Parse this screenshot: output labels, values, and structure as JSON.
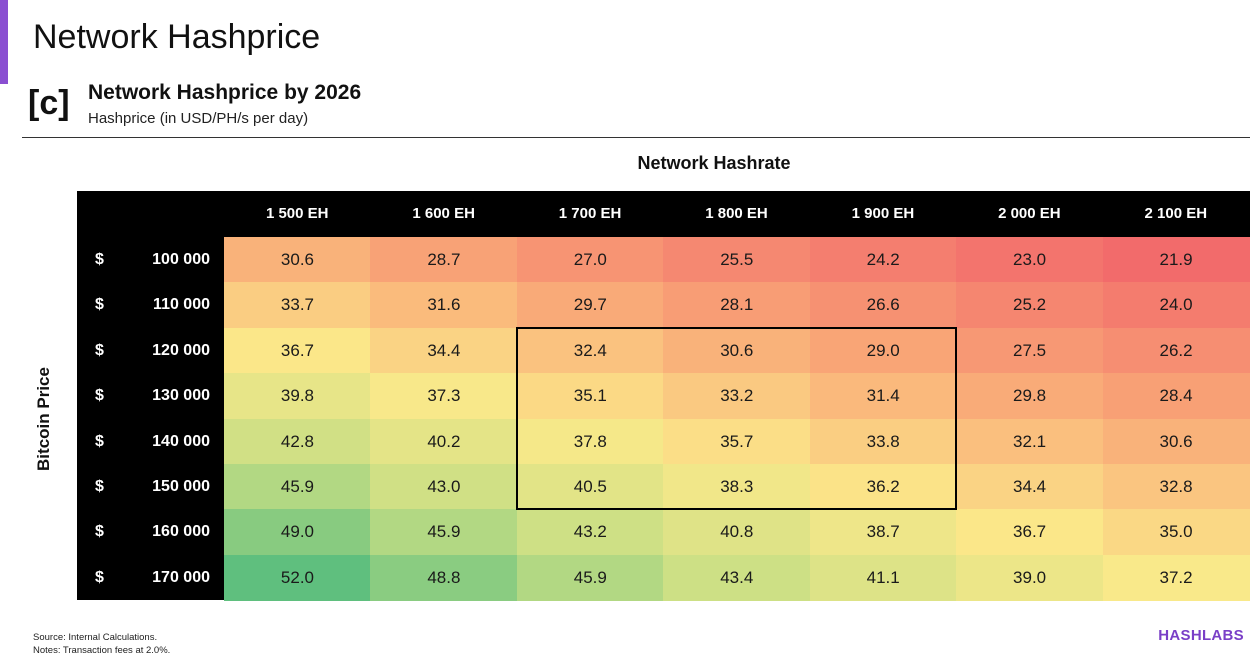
{
  "header": {
    "page_title": "Network Hashprice",
    "panel_label": "[c]",
    "chart_title": "Network Hashprice by 2026",
    "chart_subtitle": "Hashprice (in USD/PH/s per day)"
  },
  "chart_data": {
    "type": "heatmap",
    "title": "Network Hashprice by 2026",
    "subtitle": "Hashprice (in USD/PH/s per day)",
    "xlabel": "Network Hashrate",
    "ylabel": "Bitcoin Price",
    "columns": [
      "1 500 EH",
      "1 600 EH",
      "1 700 EH",
      "1 800 EH",
      "1 900 EH",
      "2 000 EH",
      "2 100 EH"
    ],
    "currency_symbol": "$",
    "rows": [
      "100 000",
      "110 000",
      "120 000",
      "130 000",
      "140 000",
      "150 000",
      "160 000",
      "170 000"
    ],
    "values": [
      [
        30.6,
        28.7,
        27.0,
        25.5,
        24.2,
        23.0,
        21.9
      ],
      [
        33.7,
        31.6,
        29.7,
        28.1,
        26.6,
        25.2,
        24.0
      ],
      [
        36.7,
        34.4,
        32.4,
        30.6,
        29.0,
        27.5,
        26.2
      ],
      [
        39.8,
        37.3,
        35.1,
        33.2,
        31.4,
        29.8,
        28.4
      ],
      [
        42.8,
        40.2,
        37.8,
        35.7,
        33.8,
        32.1,
        30.6
      ],
      [
        45.9,
        43.0,
        40.5,
        38.3,
        36.2,
        34.4,
        32.8
      ],
      [
        49.0,
        45.9,
        43.2,
        40.8,
        38.7,
        36.7,
        35.0
      ],
      [
        52.0,
        48.8,
        45.9,
        43.4,
        41.1,
        39.0,
        37.2
      ]
    ],
    "highlight": {
      "row_start": 2,
      "row_end": 5,
      "col_start": 2,
      "col_end": 4
    },
    "color_scale": {
      "low": "#f26b6b",
      "mid": "#fbe98a",
      "high": "#5fbf7e"
    }
  },
  "footer": {
    "source": "Source: Internal Calculations.",
    "notes": "Notes: Transaction fees at 2.0%.",
    "logo": "HASHLABS"
  },
  "colors": {
    "accent": "#8a4fd1",
    "brand": "#7a3fc7",
    "header_bg": "#000000"
  }
}
